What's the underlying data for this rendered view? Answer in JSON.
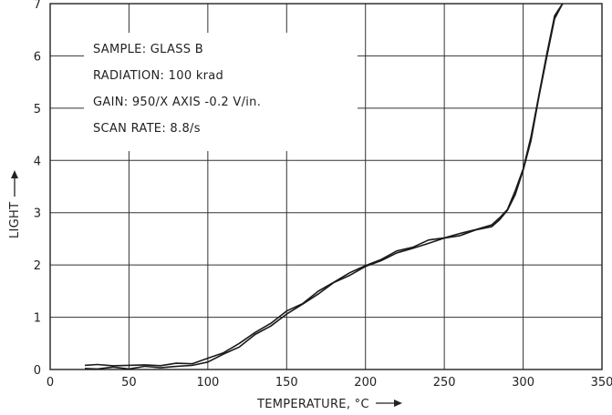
{
  "chart_data": {
    "type": "line",
    "title": "",
    "xlabel": "TEMPERATURE, °C",
    "ylabel": "LIGHT",
    "xlim": [
      0,
      350
    ],
    "ylim": [
      0,
      7
    ],
    "x_ticks": [
      "0",
      "50",
      "100",
      "150",
      "200",
      "250",
      "300",
      "350"
    ],
    "y_ticks": [
      "0",
      "1",
      "2",
      "3",
      "4",
      "5",
      "6",
      "7"
    ],
    "grid": true,
    "annotations": [
      "SAMPLE:   GLASS B",
      "RADIATION:   100 krad",
      "GAIN:   950/X AXIS  -0.2 V/in.",
      "SCAN RATE:   8.8/s"
    ],
    "series": [
      {
        "x": [
          22,
          30,
          40,
          50,
          60,
          70,
          80,
          90,
          100,
          110,
          120,
          130,
          140,
          150,
          160,
          170,
          180,
          190,
          200,
          210,
          220,
          230,
          240,
          250,
          260,
          270,
          280,
          285,
          290,
          295,
          300,
          305,
          310,
          315,
          320,
          325
        ],
        "y": [
          0.02,
          0.02,
          0.03,
          0.03,
          0.04,
          0.05,
          0.05,
          0.08,
          0.15,
          0.28,
          0.45,
          0.65,
          0.85,
          1.05,
          1.25,
          1.45,
          1.65,
          1.82,
          1.95,
          2.1,
          2.22,
          2.32,
          2.42,
          2.5,
          2.58,
          2.65,
          2.75,
          2.85,
          3.05,
          3.35,
          3.8,
          4.4,
          5.2,
          6.0,
          6.7,
          7.0
        ]
      },
      {
        "x": [
          22,
          30,
          40,
          50,
          60,
          70,
          80,
          90,
          100,
          110,
          120,
          130,
          140,
          150,
          160,
          170,
          180,
          190,
          200,
          210,
          220,
          230,
          240,
          250,
          260,
          270,
          280,
          285,
          290,
          295,
          300,
          305,
          310,
          315,
          320,
          325
        ],
        "y": [
          0.08,
          0.08,
          0.08,
          0.08,
          0.08,
          0.09,
          0.1,
          0.13,
          0.2,
          0.33,
          0.5,
          0.7,
          0.9,
          1.1,
          1.28,
          1.48,
          1.68,
          1.85,
          1.98,
          2.12,
          2.25,
          2.36,
          2.46,
          2.53,
          2.6,
          2.67,
          2.78,
          2.88,
          3.08,
          3.4,
          3.85,
          4.45,
          5.25,
          6.05,
          6.75,
          7.0
        ]
      }
    ]
  }
}
